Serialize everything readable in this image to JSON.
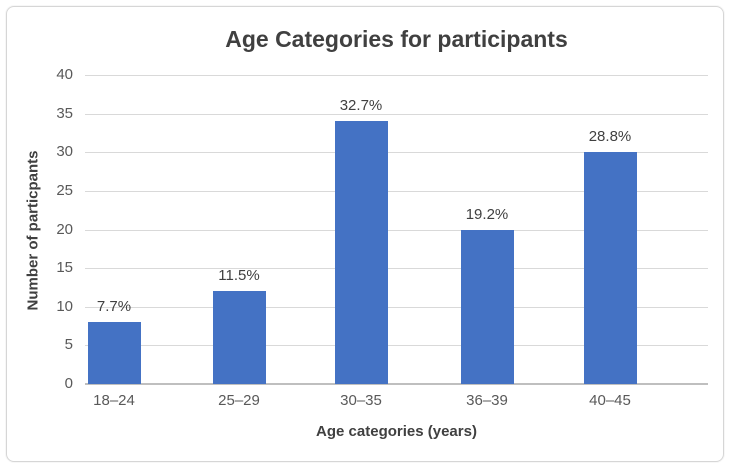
{
  "chart_data": {
    "type": "bar",
    "title": "Age Categories for participants",
    "xlabel": "Age categories (years)",
    "ylabel": "Number of particpants",
    "categories": [
      "18–24",
      "25–29",
      "30–35",
      "36–39",
      "40–45"
    ],
    "values": [
      8,
      12,
      34,
      20,
      30
    ],
    "data_labels": [
      "7.7%",
      "11.5%",
      "32.7%",
      "19.2%",
      "28.8%"
    ],
    "ylim": [
      0,
      40
    ],
    "yticks": [
      0,
      5,
      10,
      15,
      20,
      25,
      30,
      35,
      40
    ],
    "grid": "horizontal",
    "legend_position": "none",
    "bar_color": "#4472C4",
    "gridline_color": "#D9D9D9",
    "axis_line_color": "#BFBFBF",
    "title_color": "#404040",
    "tick_label_color": "#595959"
  }
}
